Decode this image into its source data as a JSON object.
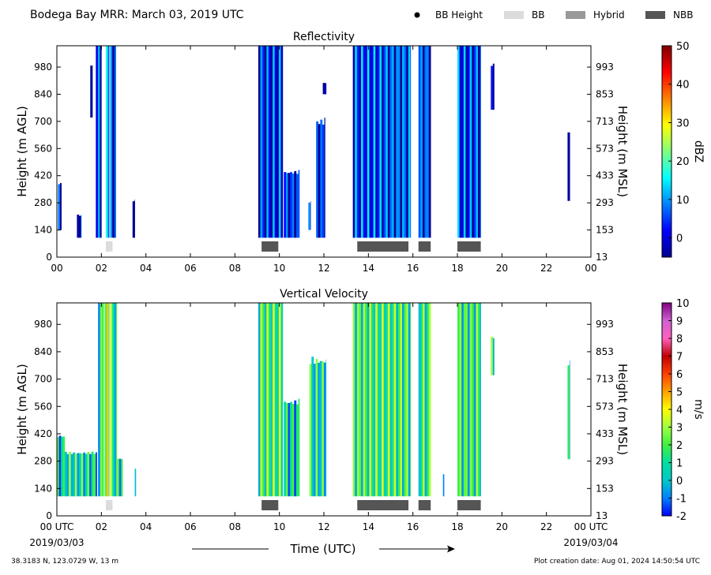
{
  "header": {
    "title": "Bodega Bay MRR:  March 03, 2019 UTC",
    "legend": [
      {
        "label": "BB Height",
        "kind": "dot",
        "color": "#000000"
      },
      {
        "label": "BB",
        "kind": "box",
        "color": "#dcdcdc"
      },
      {
        "label": "Hybrid",
        "kind": "box",
        "color": "#999999"
      },
      {
        "label": "NBB",
        "kind": "box",
        "color": "#555555"
      }
    ]
  },
  "footer": {
    "location": "38.3183 N, 123.0729 W, 13 m",
    "creation": "Plot creation date: Aug 01, 2024 14:50:54 UTC",
    "xlabel": "Time (UTC)",
    "start_date": "2019/03/03",
    "end_date": "2019/03/04"
  },
  "chart_data": [
    {
      "type": "heatmap",
      "title": "Reflectivity",
      "ylabel": "Height (m AGL)",
      "ylabel_right": "Height (m MSL)",
      "colorbar_label": "dBZ",
      "colorbar_ticks": [
        "0",
        "10",
        "20",
        "30",
        "40",
        "50"
      ],
      "colorbar_range": [
        -5,
        50
      ],
      "xlim": [
        0,
        24
      ],
      "ylim": [
        0,
        1090
      ],
      "x_ticks": [
        "00",
        "02",
        "04",
        "06",
        "08",
        "10",
        "12",
        "14",
        "16",
        "18",
        "20",
        "22",
        "00"
      ],
      "y_ticks_left": [
        "0",
        "140",
        "280",
        "420",
        "560",
        "700",
        "840",
        "980"
      ],
      "y_ticks_right": [
        "13",
        "153",
        "293",
        "433",
        "573",
        "713",
        "853",
        "993"
      ],
      "colormap": [
        "#00008f",
        "#0000ff",
        "#0080ff",
        "#00ffff",
        "#80ff80",
        "#ffff00",
        "#ff8000",
        "#ff0000",
        "#800000"
      ],
      "bright_band": [
        {
          "start": 2.2,
          "end": 2.5,
          "type": "BB"
        },
        {
          "start": 9.2,
          "end": 9.95,
          "type": "NBB"
        },
        {
          "start": 13.5,
          "end": 15.8,
          "type": "NBB"
        },
        {
          "start": 16.25,
          "end": 16.8,
          "type": "NBB"
        },
        {
          "start": 18.0,
          "end": 19.05,
          "type": "NBB"
        }
      ],
      "echo_segments": [
        {
          "start": 0.05,
          "end": 0.2,
          "bottom": 140,
          "top": 390,
          "value": 0
        },
        {
          "start": 0.9,
          "end": 1.1,
          "bottom": 100,
          "top": 220,
          "value": 0
        },
        {
          "start": 1.5,
          "end": 1.6,
          "bottom": 720,
          "top": 1000,
          "value": 0
        },
        {
          "start": 1.75,
          "end": 2.0,
          "bottom": 100,
          "top": 1090,
          "value": 2
        },
        {
          "start": 2.2,
          "end": 2.35,
          "bottom": 100,
          "top": 1090,
          "value": 8
        },
        {
          "start": 2.4,
          "end": 2.65,
          "bottom": 100,
          "top": 1090,
          "value": 3
        },
        {
          "start": 3.4,
          "end": 3.5,
          "bottom": 100,
          "top": 300,
          "value": 0
        },
        {
          "start": 9.05,
          "end": 10.15,
          "bottom": 100,
          "top": 1090,
          "value": 3
        },
        {
          "start": 10.2,
          "end": 10.9,
          "bottom": 100,
          "top": 450,
          "value": 2
        },
        {
          "start": 11.3,
          "end": 11.4,
          "bottom": 140,
          "top": 290,
          "value": 0
        },
        {
          "start": 11.65,
          "end": 12.05,
          "bottom": 100,
          "top": 720,
          "value": 2
        },
        {
          "start": 11.95,
          "end": 12.1,
          "bottom": 840,
          "top": 900,
          "value": 0
        },
        {
          "start": 13.3,
          "end": 15.9,
          "bottom": 100,
          "top": 1090,
          "value": 5
        },
        {
          "start": 16.25,
          "end": 16.8,
          "bottom": 100,
          "top": 1090,
          "value": 4
        },
        {
          "start": 18.0,
          "end": 19.05,
          "bottom": 100,
          "top": 1090,
          "value": 4
        },
        {
          "start": 19.5,
          "end": 19.65,
          "bottom": 760,
          "top": 1000,
          "value": 0
        },
        {
          "start": 22.95,
          "end": 23.05,
          "bottom": 290,
          "top": 660,
          "value": 0
        }
      ]
    },
    {
      "type": "heatmap",
      "title": "Vertical Velocity",
      "ylabel": "Height (m AGL)",
      "ylabel_right": "Height (m MSL)",
      "colorbar_label": "m/s",
      "colorbar_ticks": [
        "-2",
        "-1",
        "0",
        "1",
        "2",
        "3",
        "4",
        "5",
        "6",
        "7",
        "8",
        "9",
        "10"
      ],
      "colorbar_range": [
        -2,
        10
      ],
      "xlim": [
        0,
        24
      ],
      "ylim": [
        0,
        1090
      ],
      "x_ticks": [
        "00 UTC",
        "02",
        "04",
        "06",
        "08",
        "10",
        "12",
        "14",
        "16",
        "18",
        "20",
        "22",
        "00 UTC"
      ],
      "y_ticks_left": [
        "0",
        "140",
        "280",
        "420",
        "560",
        "700",
        "840",
        "980"
      ],
      "y_ticks_right": [
        "13",
        "153",
        "293",
        "433",
        "573",
        "713",
        "853",
        "993"
      ],
      "colormap": [
        "#0000ff",
        "#0080ff",
        "#00c8c8",
        "#00e0a0",
        "#40f040",
        "#a0ff40",
        "#ffff00",
        "#ffa000",
        "#ff4000",
        "#c00000",
        "#ff60c0",
        "#d060d0",
        "#800080"
      ],
      "bright_band": [
        {
          "start": 2.2,
          "end": 2.5,
          "type": "BB"
        },
        {
          "start": 9.2,
          "end": 9.95,
          "type": "NBB"
        },
        {
          "start": 13.5,
          "end": 15.8,
          "type": "NBB"
        },
        {
          "start": 16.25,
          "end": 16.8,
          "type": "NBB"
        },
        {
          "start": 18.0,
          "end": 19.05,
          "type": "NBB"
        }
      ],
      "echo_segments": [
        {
          "start": 0.0,
          "end": 0.35,
          "bottom": 100,
          "top": 420,
          "value": 0.5
        },
        {
          "start": 0.35,
          "end": 1.8,
          "bottom": 100,
          "top": 330,
          "value": 0.8
        },
        {
          "start": 1.85,
          "end": 2.1,
          "bottom": 100,
          "top": 1090,
          "value": 1.3
        },
        {
          "start": 2.15,
          "end": 2.35,
          "bottom": 100,
          "top": 1090,
          "value": 2.6
        },
        {
          "start": 2.4,
          "end": 2.7,
          "bottom": 100,
          "top": 1090,
          "value": 1.2
        },
        {
          "start": 2.7,
          "end": 2.95,
          "bottom": 100,
          "top": 300,
          "value": 1.0
        },
        {
          "start": 3.5,
          "end": 3.55,
          "bottom": 100,
          "top": 250,
          "value": 1.0
        },
        {
          "start": 9.05,
          "end": 10.15,
          "bottom": 100,
          "top": 1090,
          "value": 1.7
        },
        {
          "start": 10.2,
          "end": 10.9,
          "bottom": 100,
          "top": 600,
          "value": 0.6
        },
        {
          "start": 11.35,
          "end": 12.1,
          "bottom": 100,
          "top": 820,
          "value": 0.7
        },
        {
          "start": 13.3,
          "end": 15.9,
          "bottom": 100,
          "top": 1090,
          "value": 1.6
        },
        {
          "start": 16.25,
          "end": 16.8,
          "bottom": 100,
          "top": 1090,
          "value": 1.4
        },
        {
          "start": 17.35,
          "end": 17.4,
          "bottom": 100,
          "top": 220,
          "value": 1.0
        },
        {
          "start": 18.0,
          "end": 19.05,
          "bottom": 100,
          "top": 1090,
          "value": 1.4
        },
        {
          "start": 19.5,
          "end": 19.65,
          "bottom": 720,
          "top": 920,
          "value": 0.8
        },
        {
          "start": 22.95,
          "end": 23.05,
          "bottom": 290,
          "top": 800,
          "value": 1.0
        }
      ]
    }
  ]
}
